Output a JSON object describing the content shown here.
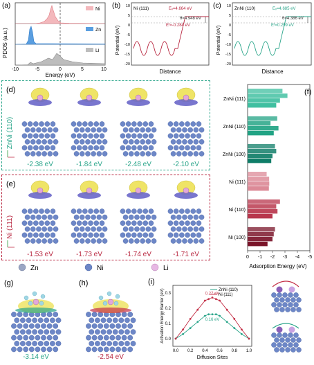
{
  "panels": {
    "a": {
      "label": "(a)",
      "ylabel": "PDOS (a.u.)",
      "xlabel": "Energy (eV)",
      "xticks": [
        "-10",
        "-5",
        "0",
        "5",
        "10"
      ],
      "legend": [
        "Ni",
        "Zn",
        "Li"
      ]
    },
    "b": {
      "label": "(b)",
      "title": "Ni (111)",
      "ev": "Eᵥ=4.664 eV",
      "phi": "θ=4.948 eV",
      "ef": "Eᶠ=-0.284 eV",
      "ylabel": "Potential (eV)",
      "xlabel": "Distance",
      "yticks": [
        "10",
        "5",
        "0",
        "-5",
        "-10",
        "-15",
        "-20"
      ]
    },
    "c": {
      "label": "(c)",
      "title": "ZnNi (110)",
      "ev": "Eᵥ=4.685 eV",
      "phi": "θ=4.386 eV",
      "ef": "Eᶠ=0.299 eV",
      "ylabel": "Potential (eV)",
      "xlabel": "Distance",
      "yticks": [
        "10",
        "5",
        "0",
        "-5",
        "-10",
        "-15",
        "-20"
      ]
    },
    "d": {
      "label": "(d)",
      "side_label": "ZnNi (110)",
      "energies": [
        "-2.38 eV",
        "-1.84 eV",
        "-2.48 eV",
        "-2.10 eV"
      ]
    },
    "e": {
      "label": "(e)",
      "side_label": "Ni (111)",
      "energies": [
        "-1.53 eV",
        "-1.73 eV",
        "-1.74 eV",
        "-1.71 eV"
      ]
    },
    "legend": {
      "items": [
        "Zn",
        "Ni",
        "Li"
      ]
    },
    "f": {
      "label": "(f)",
      "xlabel": "Adsorption Energy (eV)"
    },
    "g": {
      "label": "(g)",
      "energy": "-3.14 eV"
    },
    "h": {
      "label": "(h)",
      "energy": "-2.54 eV"
    },
    "i": {
      "label": "(i)"
    }
  },
  "colors": {
    "ni": "#e78f94",
    "zn": "#3f8ed0",
    "li": "#9a9a9a",
    "teal": "#2aa58a",
    "crimson": "#b8263f",
    "atom_blue": "#6d87c7",
    "lobe_yellow": "#efe466",
    "lobe_blue": "#6a67c9"
  },
  "chart_data": [
    {
      "type": "bar",
      "panel": "f",
      "xlabel": "Adsorption Energy (eV)",
      "xlim": [
        0,
        -5
      ],
      "xticks": [
        "0",
        "-1",
        "-2",
        "-3",
        "-4",
        "-5"
      ],
      "categories": [
        "ZnNi (111)",
        "ZnNi (110)",
        "ZnNi (100)",
        "Ni (111)",
        "Ni (110)",
        "Ni (100)"
      ],
      "groups": [
        {
          "name": "ZnNi (111)",
          "values": [
            -2.8,
            -3.2,
            -2.6,
            -2.3
          ],
          "color": "#3fbfa0"
        },
        {
          "name": "ZnNi (110)",
          "values": [
            -2.38,
            -1.84,
            -2.48,
            -2.1
          ],
          "color": "#21a384"
        },
        {
          "name": "ZnNi (100)",
          "values": [
            -2.2,
            -2.3,
            -2.0,
            -1.9
          ],
          "color": "#0f7d68"
        },
        {
          "name": "Ni (111)",
          "values": [
            -1.53,
            -1.73,
            -1.74,
            -1.71
          ],
          "color": "#dc8a97"
        },
        {
          "name": "Ni (110)",
          "values": [
            -2.6,
            -2.3,
            -2.4,
            -2.0
          ],
          "color": "#b8364c"
        },
        {
          "name": "Ni (100)",
          "values": [
            -2.2,
            -2.1,
            -2.0,
            -1.6
          ],
          "color": "#7a1429"
        }
      ]
    },
    {
      "type": "line",
      "panel": "i",
      "xlabel": "Diffusion Sites",
      "ylabel": "Activation Energy Barrier (eV)",
      "xlim": [
        0,
        1.0
      ],
      "ylim": [
        -0.05,
        0.35
      ],
      "xticks": [
        "0.0",
        "0.2",
        "0.4",
        "0.6",
        "0.8",
        "1.0"
      ],
      "yticks": [
        "0.3",
        "0.2",
        "0.1",
        "0.0"
      ],
      "legend": [
        "ZnNi (110)",
        "Ni (111)"
      ],
      "series": [
        {
          "name": "ZnNi (110)",
          "color": "#2aa58a",
          "x": [
            0,
            0.1,
            0.2,
            0.3,
            0.4,
            0.45,
            0.5,
            0.55,
            0.6,
            0.7,
            0.8,
            0.9,
            1.0
          ],
          "y": [
            0,
            0.03,
            0.07,
            0.11,
            0.15,
            0.16,
            0.16,
            0.16,
            0.15,
            0.11,
            0.07,
            0.03,
            0
          ]
        },
        {
          "name": "Ni (111)",
          "color": "#c43148",
          "x": [
            0,
            0.1,
            0.2,
            0.3,
            0.4,
            0.45,
            0.5,
            0.55,
            0.6,
            0.7,
            0.8,
            0.9,
            1.0
          ],
          "y": [
            0,
            0.06,
            0.13,
            0.19,
            0.25,
            0.26,
            0.27,
            0.26,
            0.25,
            0.19,
            0.13,
            0.06,
            0
          ]
        }
      ],
      "annotations": [
        "0.27 eV",
        "0.16 eV"
      ]
    }
  ]
}
